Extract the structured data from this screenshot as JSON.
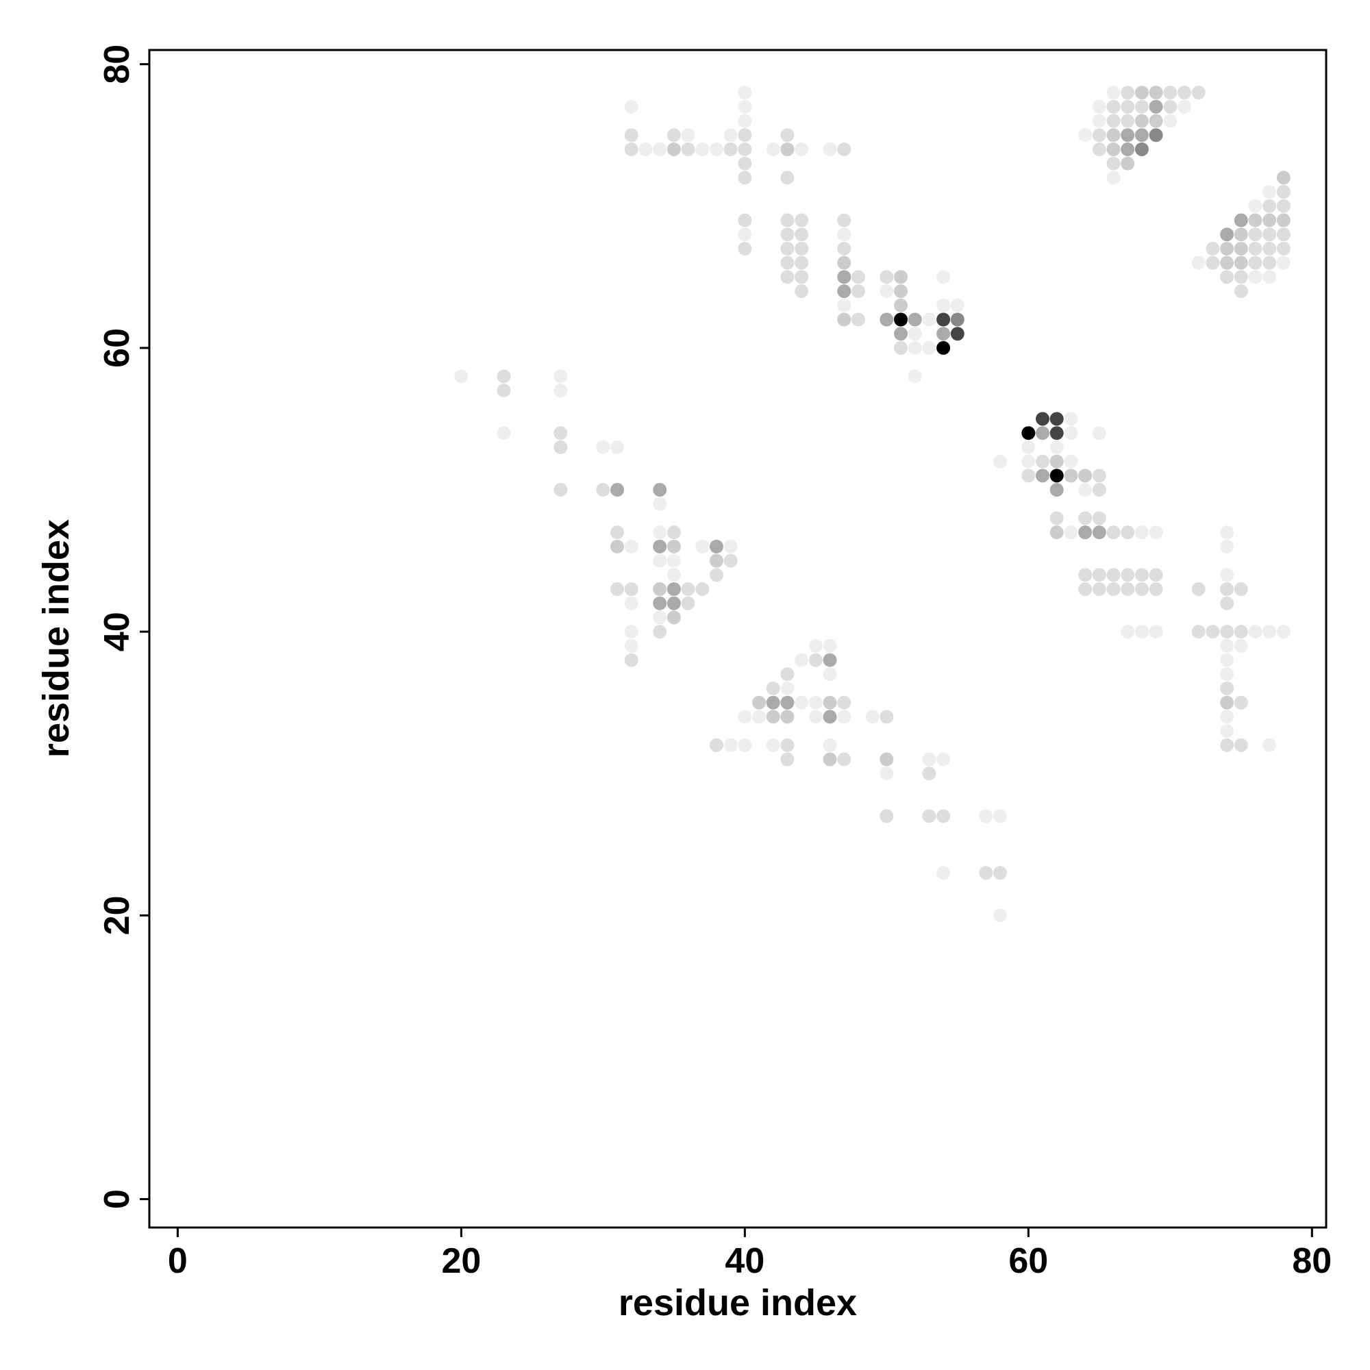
{
  "chart_data": {
    "type": "scatter",
    "xlabel": "residue index",
    "ylabel": "residue index",
    "xlim": [
      -2,
      81
    ],
    "ylim": [
      -2,
      81
    ],
    "xticks": [
      0,
      20,
      40,
      60,
      80
    ],
    "yticks": [
      0,
      20,
      40,
      60,
      80
    ],
    "x": [
      40,
      66,
      67,
      68,
      69,
      70,
      71,
      72,
      32,
      40,
      65,
      66,
      67,
      68,
      69,
      70,
      71,
      40,
      65,
      66,
      67,
      68,
      69,
      70,
      32,
      35,
      36,
      39,
      40,
      43,
      64,
      65,
      66,
      67,
      68,
      69,
      32,
      33,
      34,
      35,
      36,
      37,
      38,
      39,
      40,
      42,
      43,
      44,
      46,
      47,
      65,
      66,
      67,
      68,
      40,
      66,
      67,
      40,
      43,
      66,
      78,
      77,
      78,
      76,
      77,
      78,
      40,
      43,
      44,
      47,
      75,
      76,
      77,
      78,
      40,
      43,
      44,
      47,
      74,
      75,
      76,
      77,
      78,
      40,
      43,
      44,
      47,
      73,
      74,
      75,
      76,
      77,
      78,
      43,
      44,
      47,
      72,
      73,
      74,
      75,
      76,
      77,
      78,
      43,
      44,
      47,
      48,
      50,
      51,
      54,
      74,
      75,
      76,
      77,
      44,
      47,
      48,
      50,
      51,
      75,
      47,
      51,
      54,
      55,
      47,
      48,
      50,
      51,
      52,
      53,
      54,
      55,
      51,
      52,
      54,
      55,
      51,
      52,
      53,
      54,
      20,
      23,
      27,
      52,
      23,
      27,
      61,
      62,
      63,
      23,
      27,
      60,
      61,
      62,
      63,
      65,
      27,
      30,
      31,
      60,
      62,
      58,
      60,
      61,
      62,
      63,
      60,
      61,
      62,
      63,
      64,
      65,
      27,
      30,
      31,
      34,
      62,
      64,
      65,
      34,
      62,
      64,
      65,
      31,
      34,
      35,
      62,
      63,
      64,
      65,
      66,
      67,
      68,
      69,
      74,
      31,
      32,
      34,
      35,
      37,
      38,
      39,
      74,
      34,
      35,
      38,
      39,
      35,
      38,
      64,
      65,
      66,
      67,
      68,
      69,
      74,
      31,
      32,
      34,
      35,
      36,
      37,
      64,
      65,
      66,
      67,
      68,
      69,
      72,
      74,
      75,
      32,
      34,
      35,
      36,
      74,
      34,
      35,
      32,
      34,
      67,
      68,
      69,
      72,
      73,
      74,
      75,
      76,
      77,
      78,
      32,
      45,
      46,
      74,
      75,
      32,
      44,
      45,
      46,
      74,
      43,
      46,
      74,
      42,
      43,
      74,
      41,
      42,
      43,
      44,
      45,
      46,
      47,
      74,
      75,
      40,
      41,
      42,
      43,
      45,
      46,
      47,
      49,
      50,
      74,
      74,
      38,
      39,
      40,
      42,
      43,
      46,
      74,
      75,
      77,
      43,
      46,
      47,
      50,
      53,
      54,
      50,
      53,
      50,
      53,
      54,
      57,
      58,
      54,
      57,
      58,
      58
    ],
    "values": [
      78,
      78,
      78,
      78,
      78,
      78,
      78,
      78,
      77,
      77,
      77,
      77,
      77,
      77,
      77,
      77,
      77,
      76,
      76,
      76,
      76,
      76,
      76,
      76,
      75,
      75,
      75,
      75,
      75,
      75,
      75,
      75,
      75,
      75,
      75,
      75,
      74,
      74,
      74,
      74,
      74,
      74,
      74,
      74,
      74,
      74,
      74,
      74,
      74,
      74,
      74,
      74,
      74,
      74,
      73,
      73,
      73,
      72,
      72,
      72,
      72,
      71,
      71,
      70,
      70,
      70,
      69,
      69,
      69,
      69,
      69,
      69,
      69,
      69,
      68,
      68,
      68,
      68,
      68,
      68,
      68,
      68,
      68,
      67,
      67,
      67,
      67,
      67,
      67,
      67,
      67,
      67,
      67,
      66,
      66,
      66,
      66,
      66,
      66,
      66,
      66,
      66,
      66,
      65,
      65,
      65,
      65,
      65,
      65,
      65,
      65,
      65,
      65,
      65,
      64,
      64,
      64,
      64,
      64,
      64,
      63,
      63,
      63,
      63,
      62,
      62,
      62,
      62,
      62,
      62,
      62,
      62,
      61,
      61,
      61,
      61,
      60,
      60,
      60,
      60,
      58,
      58,
      58,
      58,
      57,
      57,
      55,
      55,
      55,
      54,
      54,
      54,
      54,
      54,
      54,
      54,
      53,
      53,
      53,
      53,
      53,
      52,
      52,
      52,
      52,
      52,
      51,
      51,
      51,
      51,
      51,
      51,
      50,
      50,
      50,
      50,
      50,
      50,
      50,
      49,
      48,
      48,
      48,
      47,
      47,
      47,
      47,
      47,
      47,
      47,
      47,
      47,
      47,
      47,
      47,
      46,
      46,
      46,
      46,
      46,
      46,
      46,
      46,
      45,
      45,
      45,
      45,
      44,
      44,
      44,
      44,
      44,
      44,
      44,
      44,
      44,
      43,
      43,
      43,
      43,
      43,
      43,
      43,
      43,
      43,
      43,
      43,
      43,
      43,
      43,
      43,
      42,
      42,
      42,
      42,
      42,
      41,
      41,
      40,
      40,
      40,
      40,
      40,
      40,
      40,
      40,
      40,
      40,
      40,
      40,
      39,
      39,
      39,
      39,
      39,
      38,
      38,
      38,
      38,
      38,
      37,
      37,
      37,
      36,
      36,
      36,
      35,
      35,
      35,
      35,
      35,
      35,
      35,
      35,
      35,
      34,
      34,
      34,
      34,
      34,
      34,
      34,
      34,
      34,
      34,
      33,
      32,
      32,
      32,
      32,
      32,
      32,
      32,
      32,
      32,
      31,
      31,
      31,
      31,
      31,
      31,
      30,
      30,
      27,
      27,
      27,
      27,
      27,
      23,
      23,
      23,
      20
    ],
    "colors": [
      "#eee",
      "#eee",
      "#ddd",
      "#ccc",
      "#ccc",
      "#ddd",
      "#ddd",
      "#ddd",
      "#eee",
      "#eee",
      "#eee",
      "#ddd",
      "#ddd",
      "#ddd",
      "#aaa",
      "#ddd",
      "#eee",
      "#eee",
      "#eee",
      "#ddd",
      "#ddd",
      "#ccc",
      "#ccc",
      "#eee",
      "#ddd",
      "#ddd",
      "#eee",
      "#eee",
      "#ddd",
      "#ddd",
      "#eee",
      "#ddd",
      "#ccc",
      "#aaa",
      "#aaa",
      "#888",
      "#ddd",
      "#eee",
      "#eee",
      "#ccc",
      "#ddd",
      "#eee",
      "#eee",
      "#ddd",
      "#ddd",
      "#eee",
      "#ccc",
      "#eee",
      "#eee",
      "#ddd",
      "#ddd",
      "#ccc",
      "#aaa",
      "#888",
      "#ddd",
      "#ddd",
      "#ccc",
      "#ddd",
      "#ddd",
      "#eee",
      "#ccc",
      "#eee",
      "#ddd",
      "#eee",
      "#ddd",
      "#ddd",
      "#ddd",
      "#ddd",
      "#ddd",
      "#ddd",
      "#aaa",
      "#ccc",
      "#ccc",
      "#ccc",
      "#eee",
      "#ddd",
      "#ddd",
      "#eee",
      "#aaa",
      "#ccc",
      "#ddd",
      "#ddd",
      "#ddd",
      "#ddd",
      "#ddd",
      "#ddd",
      "#ddd",
      "#ddd",
      "#ccc",
      "#ccc",
      "#ddd",
      "#ddd",
      "#ddd",
      "#ddd",
      "#ddd",
      "#ccc",
      "#eee",
      "#ddd",
      "#ccc",
      "#ccc",
      "#ddd",
      "#ddd",
      "#eee",
      "#ddd",
      "#ddd",
      "#aaa",
      "#ddd",
      "#ddd",
      "#ccc",
      "#eee",
      "#ddd",
      "#ddd",
      "#eee",
      "#eee",
      "#ddd",
      "#aaa",
      "#ddd",
      "#eee",
      "#ccc",
      "#ddd",
      "#eee",
      "#ccc",
      "#eee",
      "#eee",
      "#ccc",
      "#ddd",
      "#aaa",
      "#000",
      "#aaa",
      "#eee",
      "#444",
      "#888",
      "#aaa",
      "#eee",
      "#aaa",
      "#444",
      "#ddd",
      "#eee",
      "#eee",
      "#000",
      "#eee",
      "#ddd",
      "#eee",
      "#eee",
      "#ddd",
      "#eee",
      "#444",
      "#444",
      "#eee",
      "#eee",
      "#ddd",
      "#000",
      "#aaa",
      "#444",
      "#eee",
      "#eee",
      "#ddd",
      "#eee",
      "#eee",
      "#eee",
      "#eee",
      "#eee",
      "#eee",
      "#ddd",
      "#ccc",
      "#eee",
      "#ddd",
      "#aaa",
      "#000",
      "#ccc",
      "#ccc",
      "#ddd",
      "#ddd",
      "#ddd",
      "#aaa",
      "#aaa",
      "#aaa",
      "#eee",
      "#ddd",
      "#eee",
      "#ddd",
      "#ddd",
      "#ddd",
      "#ddd",
      "#eee",
      "#ddd",
      "#ccc",
      "#eee",
      "#aaa",
      "#aaa",
      "#ddd",
      "#ddd",
      "#eee",
      "#eee",
      "#eee",
      "#ccc",
      "#eee",
      "#aaa",
      "#ccc",
      "#eee",
      "#aaa",
      "#eee",
      "#eee",
      "#eee",
      "#eee",
      "#ccc",
      "#ddd",
      "#eee",
      "#ddd",
      "#ddd",
      "#ddd",
      "#ddd",
      "#ddd",
      "#ddd",
      "#ddd",
      "#eee",
      "#ddd",
      "#ddd",
      "#ccc",
      "#aaa",
      "#ddd",
      "#ddd",
      "#ddd",
      "#ddd",
      "#ddd",
      "#ddd",
      "#ddd",
      "#ddd",
      "#ddd",
      "#ddd",
      "#ddd",
      "#eee",
      "#aaa",
      "#aaa",
      "#ddd",
      "#ddd",
      "#eee",
      "#ccc",
      "#eee",
      "#ddd",
      "#eee",
      "#eee",
      "#eee",
      "#ddd",
      "#ddd",
      "#ddd",
      "#ddd",
      "#eee",
      "#eee",
      "#eee",
      "#eee",
      "#eee",
      "#eee",
      "#eee",
      "#eee",
      "#ddd",
      "#eee",
      "#ddd",
      "#aaa",
      "#eee",
      "#ddd",
      "#eee",
      "#eee",
      "#ddd",
      "#eee",
      "#ddd",
      "#ccc",
      "#aaa",
      "#aaa",
      "#eee",
      "#eee",
      "#ccc",
      "#ddd",
      "#ccc",
      "#ddd",
      "#eee",
      "#eee",
      "#ccc",
      "#ccc",
      "#eee",
      "#aaa",
      "#eee",
      "#eee",
      "#ddd",
      "#eee",
      "#eee",
      "#ddd",
      "#eee",
      "#eee",
      "#eee",
      "#ddd",
      "#eee",
      "#ddd",
      "#ddd",
      "#eee",
      "#ddd",
      "#ccc",
      "#ddd",
      "#ccc",
      "#eee",
      "#eee",
      "#eee",
      "#ddd",
      "#ddd",
      "#ddd",
      "#ddd",
      "#eee",
      "#eee",
      "#eee",
      "#ddd",
      "#ddd",
      "#eee"
    ]
  }
}
